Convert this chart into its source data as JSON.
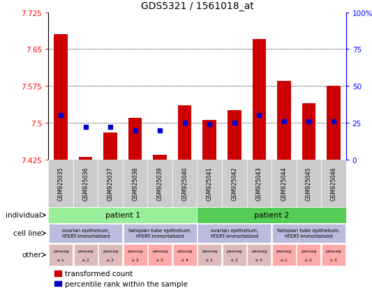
{
  "title": "GDS5321 / 1561018_at",
  "samples": [
    "GSM925035",
    "GSM925036",
    "GSM925037",
    "GSM925038",
    "GSM925039",
    "GSM925040",
    "GSM925041",
    "GSM925042",
    "GSM925043",
    "GSM925044",
    "GSM925045",
    "GSM925046"
  ],
  "bar_values": [
    7.68,
    7.43,
    7.48,
    7.51,
    7.435,
    7.535,
    7.505,
    7.525,
    7.67,
    7.585,
    7.54,
    7.575
  ],
  "percentile_values": [
    30,
    22,
    22,
    20,
    20,
    25,
    24,
    25,
    30,
    26,
    26,
    26
  ],
  "y_min": 7.425,
  "y_max": 7.725,
  "y_ticks": [
    7.425,
    7.5,
    7.575,
    7.65,
    7.725
  ],
  "y_right_ticks": [
    0,
    25,
    50,
    75,
    100
  ],
  "dotted_lines": [
    7.65,
    7.575,
    7.5
  ],
  "bar_color": "#cc0000",
  "blue_color": "#0000cc",
  "patient1_color": "#99ee99",
  "patient2_color": "#55cc55",
  "cell_line_color": "#bbbbdd",
  "other_color1": "#ddbbbb",
  "other_color2": "#ffaaaa",
  "sample_bg_color": "#cccccc",
  "other_labels": [
    "e 1",
    "e 2",
    "e 3",
    "e 2",
    "e 3",
    "e 4",
    "e 1",
    "e 2",
    "e 3",
    "e 1",
    "e 2",
    "e 3"
  ],
  "legend_items": [
    "transformed count",
    "percentile rank within the sample"
  ]
}
